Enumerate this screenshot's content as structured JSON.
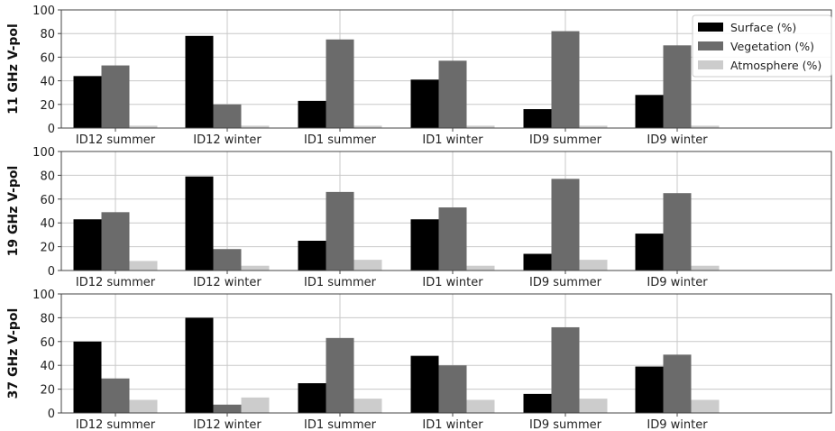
{
  "chart_data": [
    {
      "type": "bar",
      "ylabel": "11 GHz V-pol",
      "ylim": [
        0,
        100
      ],
      "yticks": [
        0,
        20,
        40,
        60,
        80,
        100
      ],
      "categories": [
        "ID12 summer",
        "ID12 winter",
        "ID1 summer",
        "ID1 winter",
        "ID9 summer",
        "ID9 winter"
      ],
      "series": [
        {
          "name": "Surface (%)",
          "values": [
            44,
            78,
            23,
            41,
            16,
            28
          ]
        },
        {
          "name": "Vegetation (%)",
          "values": [
            53,
            20,
            75,
            57,
            82,
            70
          ]
        },
        {
          "name": "Atmosphere (%)",
          "values": [
            2,
            2,
            2,
            2,
            2,
            2
          ]
        }
      ],
      "grid": true,
      "legend": "top-right"
    },
    {
      "type": "bar",
      "ylabel": "19 GHz V-pol",
      "ylim": [
        0,
        100
      ],
      "yticks": [
        0,
        20,
        40,
        60,
        80,
        100
      ],
      "categories": [
        "ID12 summer",
        "ID12 winter",
        "ID1 summer",
        "ID1 winter",
        "ID9 summer",
        "ID9 winter"
      ],
      "series": [
        {
          "name": "Surface (%)",
          "values": [
            43,
            79,
            25,
            43,
            14,
            31
          ]
        },
        {
          "name": "Vegetation (%)",
          "values": [
            49,
            18,
            66,
            53,
            77,
            65
          ]
        },
        {
          "name": "Atmosphere (%)",
          "values": [
            8,
            4,
            9,
            4,
            9,
            4
          ]
        }
      ],
      "grid": true
    },
    {
      "type": "bar",
      "ylabel": "37 GHz V-pol",
      "ylim": [
        0,
        100
      ],
      "yticks": [
        0,
        20,
        40,
        60,
        80,
        100
      ],
      "categories": [
        "ID12 summer",
        "ID12 winter",
        "ID1 summer",
        "ID1 winter",
        "ID9 summer",
        "ID9 winter"
      ],
      "series": [
        {
          "name": "Surface (%)",
          "values": [
            60,
            80,
            25,
            48,
            16,
            39
          ]
        },
        {
          "name": "Vegetation (%)",
          "values": [
            29,
            7,
            63,
            40,
            72,
            49
          ]
        },
        {
          "name": "Atmosphere (%)",
          "values": [
            11,
            13,
            12,
            11,
            12,
            11
          ]
        }
      ],
      "grid": true
    }
  ],
  "colors": {
    "Surface (%)": "#000000",
    "Vegetation (%)": "#6b6b6b",
    "Atmosphere (%)": "#cccccc",
    "grid": "#c8c8c8",
    "axes": "#444444"
  }
}
